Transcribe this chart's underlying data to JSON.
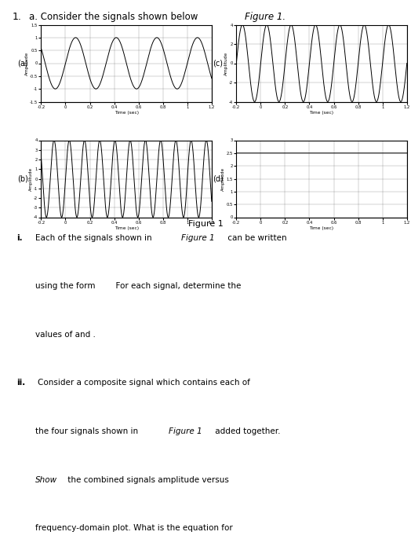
{
  "background_color": "#ffffff",
  "plots": [
    {
      "label": "(a)",
      "amplitude": 1.0,
      "frequency": 3,
      "dc": 0,
      "xlim": [
        -0.2,
        1.2
      ],
      "ylim": [
        -1.5,
        1.5
      ],
      "yticks": [
        -1.5,
        -1,
        -0.5,
        0,
        0.5,
        1,
        1.5
      ],
      "ytick_labels": [
        "-1.5",
        "-1",
        "-0.5",
        "0",
        "0.5",
        "1",
        "1.5"
      ],
      "xticks": [
        -0.2,
        0,
        0.2,
        0.4,
        0.6,
        0.8,
        1,
        1.2
      ],
      "xtick_labels": [
        "-0.2",
        "0",
        "0.2",
        "0.4",
        "0.6",
        "0.8",
        "1",
        "1.2"
      ],
      "xlabel": "Time (sec)",
      "ylabel": "Amplitude"
    },
    {
      "label": "(b)",
      "amplitude": 4.0,
      "frequency": 8,
      "dc": 0,
      "xlim": [
        -0.2,
        1.2
      ],
      "ylim": [
        -4,
        4
      ],
      "yticks": [
        -4,
        -3,
        -2,
        -1,
        0,
        1,
        2,
        3,
        4
      ],
      "ytick_labels": [
        "-4",
        "-3",
        "-2",
        "-1",
        "0",
        "1",
        "2",
        "3",
        "4"
      ],
      "xticks": [
        -0.2,
        0,
        0.2,
        0.4,
        0.6,
        0.8,
        1,
        1.2
      ],
      "xtick_labels": [
        "-0.2",
        "0",
        "0.2",
        "0.4",
        "0.6",
        "0.8",
        "1",
        "1.2"
      ],
      "xlabel": "Time (sec)",
      "ylabel": "Amplitude"
    },
    {
      "label": "(c)",
      "amplitude": 4.0,
      "frequency": 5,
      "dc": 0,
      "xlim": [
        -0.2,
        1.2
      ],
      "ylim": [
        -4,
        4
      ],
      "yticks": [
        -4,
        -2,
        0,
        2,
        4
      ],
      "ytick_labels": [
        "-4",
        "-2",
        "0",
        "2",
        "4"
      ],
      "xticks": [
        -0.2,
        0,
        0.2,
        0.4,
        0.6,
        0.8,
        1,
        1.2
      ],
      "xtick_labels": [
        "-0.2",
        "0",
        "0.2",
        "0.4",
        "0.6",
        "0.8",
        "1",
        "1.2"
      ],
      "xlabel": "Time (sec)",
      "ylabel": "Amplitude"
    },
    {
      "label": "(d)",
      "amplitude": 0,
      "frequency": 0,
      "dc": 2.5,
      "xlim": [
        -0.2,
        1.2
      ],
      "ylim": [
        0,
        3
      ],
      "yticks": [
        0,
        0.5,
        1,
        1.5,
        2,
        2.5,
        3
      ],
      "ytick_labels": [
        "0",
        "0.5",
        "1",
        "1.5",
        "2",
        "2.5",
        "3"
      ],
      "xticks": [
        -0.2,
        0,
        0.2,
        0.4,
        0.6,
        0.8,
        1,
        1.2
      ],
      "xtick_labels": [
        "-0.2",
        "0",
        "0.2",
        "0.4",
        "0.6",
        "0.8",
        "1",
        "1.2"
      ],
      "xlabel": "Time (sec)",
      "ylabel": "Amplitude"
    }
  ],
  "header_number": "1.",
  "header_a": "a. Consider the signals shown below ",
  "header_a_italic": "Figure 1.",
  "figure_caption": "Figure 1",
  "fs": 7.5,
  "lh": 0.088
}
